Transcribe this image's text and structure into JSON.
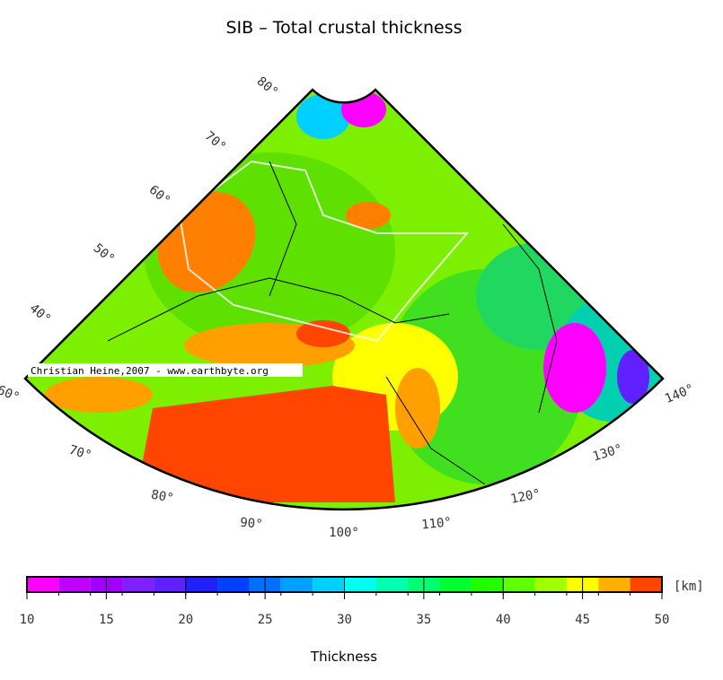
{
  "title": "SIB – Total crustal thickness",
  "map": {
    "lat_labels": [
      "80°",
      "70°",
      "60°",
      "50°",
      "40°"
    ],
    "lon_labels": [
      "60°",
      "70°",
      "80°",
      "90°",
      "100°",
      "110°",
      "120°",
      "130°",
      "140°"
    ],
    "credit": "Christian Heine,2007 - www.earthbyte.org"
  },
  "colorbar": {
    "range": [
      10,
      50
    ],
    "levels": [
      10,
      12,
      14,
      16,
      18,
      20,
      22,
      24,
      26,
      28,
      30,
      32,
      34,
      36,
      38,
      40,
      42,
      44,
      46,
      48,
      50
    ],
    "colors": [
      "#ff00ff",
      "#c000ff",
      "#a000ff",
      "#8020ff",
      "#6020ff",
      "#2020ff",
      "#0040ff",
      "#0070ff",
      "#00a0ff",
      "#00d0ff",
      "#00fff0",
      "#00ffb0",
      "#00ff70",
      "#00ff30",
      "#20ff00",
      "#60ff00",
      "#a0ff00",
      "#ffff00",
      "#ffb000",
      "#ff4500"
    ],
    "ticks": [
      10,
      15,
      20,
      25,
      30,
      35,
      40,
      45,
      50
    ],
    "unit": "[km]",
    "label": "Thickness"
  }
}
